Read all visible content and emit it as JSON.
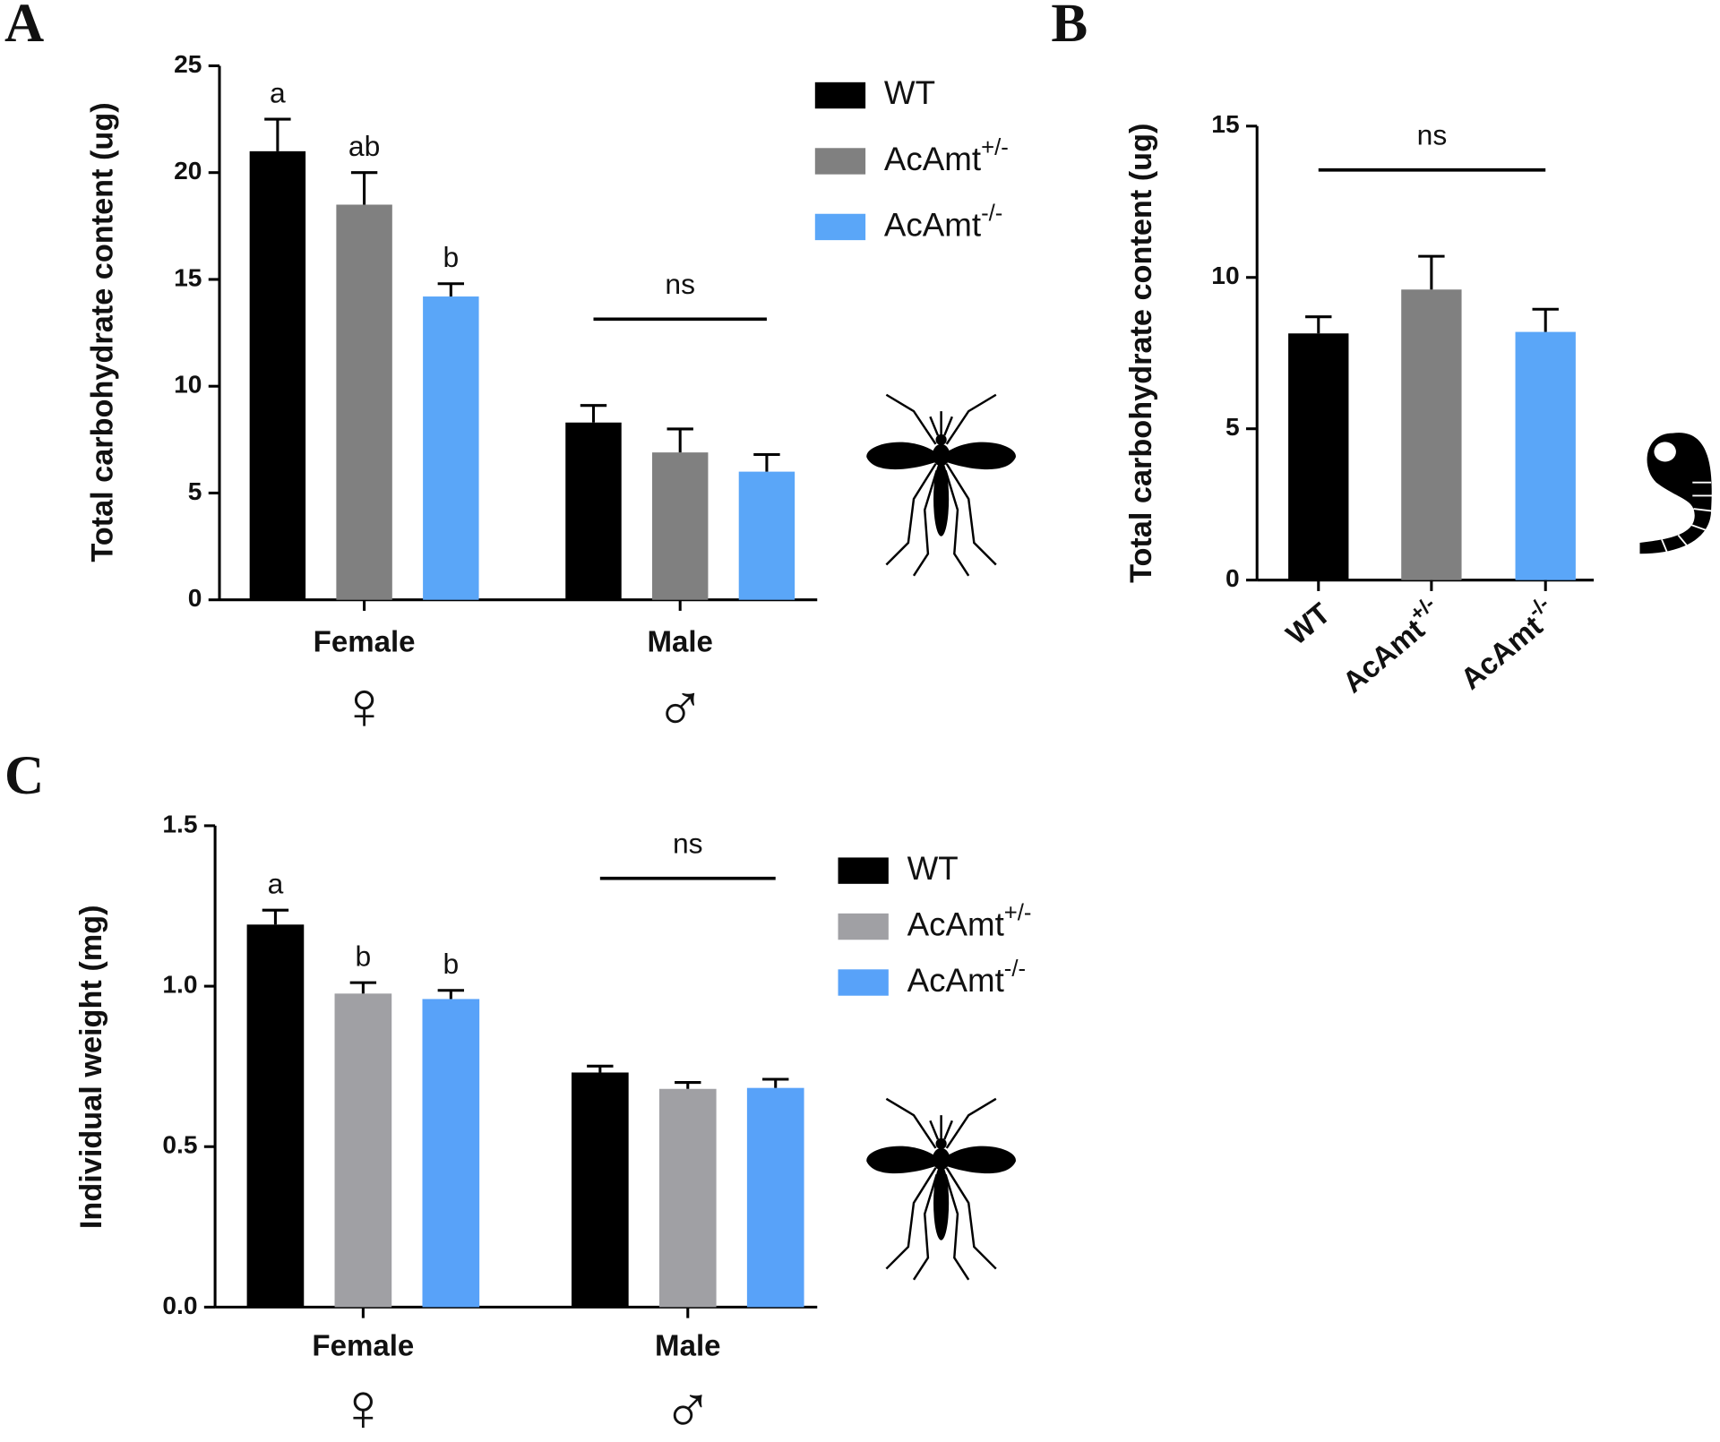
{
  "chart_data": [
    {
      "panel": "A",
      "type": "bar",
      "ylabel": "Total carbohydrate content (ug)",
      "categories": [
        "Female",
        "Male"
      ],
      "category_symbols": [
        "♀",
        "♂"
      ],
      "ylim": [
        0,
        25
      ],
      "yticks": [
        0,
        5,
        10,
        15,
        20,
        25
      ],
      "legend": "right",
      "series": [
        {
          "name": "WT",
          "color": "#000000",
          "values": [
            21.0,
            8.3
          ],
          "errors": [
            1.5,
            0.8
          ],
          "letters": [
            "a",
            null
          ]
        },
        {
          "name": "AcAmt+/-",
          "color": "#808080",
          "values": [
            18.5,
            6.9
          ],
          "errors": [
            1.5,
            1.1
          ],
          "letters": [
            "ab",
            null
          ]
        },
        {
          "name": "AcAmt-/-",
          "color": "#5aa6f8",
          "values": [
            14.2,
            6.0
          ],
          "errors": [
            0.6,
            0.8
          ],
          "letters": [
            "b",
            null
          ]
        }
      ],
      "group_annotations": [
        null,
        "ns"
      ]
    },
    {
      "panel": "B",
      "type": "bar",
      "ylabel": "Total carbohydrate content (ug)",
      "categories": [
        "WT",
        "AcAmt+/-",
        "AcAmt-/-"
      ],
      "values": [
        8.15,
        9.6,
        8.2
      ],
      "errors": [
        0.55,
        1.1,
        0.75
      ],
      "colors": [
        "#000000",
        "#808080",
        "#5aa6f8"
      ],
      "ylim": [
        0,
        15
      ],
      "yticks": [
        0,
        5,
        10,
        15
      ],
      "annotation": "ns"
    },
    {
      "panel": "C",
      "type": "bar",
      "ylabel": "Individual weight (mg)",
      "categories": [
        "Female",
        "Male"
      ],
      "category_symbols": [
        "♀",
        "♂"
      ],
      "ylim": [
        0,
        1.5
      ],
      "yticks": [
        {
          "value": 0,
          "label": "0.0"
        },
        0.5,
        {
          "value": 1,
          "label": "1.0"
        },
        1.5
      ],
      "legend": "right",
      "series": [
        {
          "name": "WT",
          "color": "#000000",
          "values": [
            1.192,
            0.731
          ],
          "errors": [
            0.045,
            0.02
          ],
          "letters": [
            "a",
            null
          ]
        },
        {
          "name": "AcAmt+/-",
          "color": "#a0a0a4",
          "values": [
            0.977,
            0.68
          ],
          "errors": [
            0.034,
            0.02
          ],
          "letters": [
            "b",
            null
          ]
        },
        {
          "name": "AcAmt-/-",
          "color": "#58a2f9",
          "values": [
            0.96,
            0.683
          ],
          "errors": [
            0.027,
            0.027
          ],
          "letters": [
            "b",
            null
          ]
        }
      ],
      "group_annotations": [
        null,
        "ns"
      ]
    }
  ]
}
